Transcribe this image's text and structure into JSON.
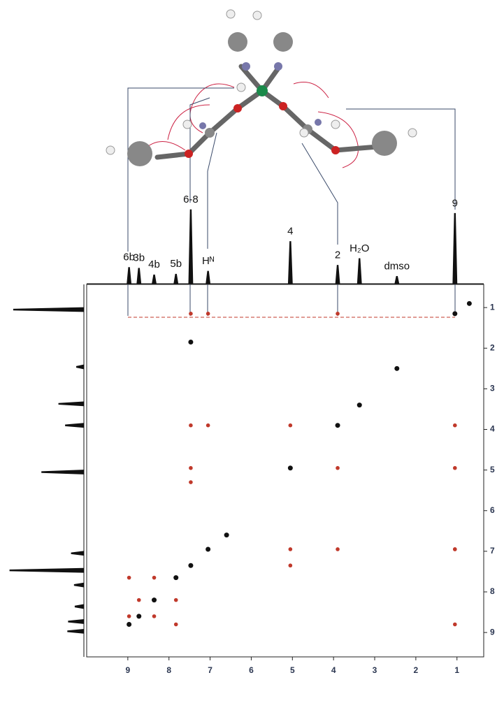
{
  "chart_data": {
    "type": "nmr2d",
    "xlim": [
      10,
      0.35
    ],
    "xticks": [
      9,
      8,
      7,
      6,
      5,
      4,
      3,
      2,
      1
    ],
    "ylim": [
      0.43,
      9.6
    ],
    "yticks": [
      1,
      2,
      3,
      4,
      5,
      6,
      7,
      8,
      9
    ],
    "peaks": {
      "x": [
        8.97,
        8.73,
        8.36,
        7.83,
        7.47,
        7.05,
        5.05,
        3.9,
        3.37,
        2.46,
        1.05
      ],
      "values": [
        22,
        21,
        12,
        13,
        100,
        17,
        57,
        25,
        34,
        10,
        95
      ],
      "labels": [
        "6b",
        "3b",
        "4b",
        "5b",
        "6-8",
        "Hᴺ",
        "4",
        "2",
        "H₂O",
        "dmso",
        "9"
      ]
    },
    "series": [
      {
        "color": "#111111",
        "x": [
          1.05,
          2.46,
          3.37,
          3.9,
          5.05,
          6.6,
          7.05,
          7.47,
          7.83,
          8.36,
          8.73,
          8.97,
          7.47,
          0.7
        ],
        "values": [
          1.15,
          2.5,
          3.4,
          3.9,
          4.95,
          6.6,
          6.95,
          7.35,
          7.65,
          8.2,
          8.6,
          8.8,
          1.85,
          0.9
        ]
      },
      {
        "color": "#c0392b",
        "x": [
          7.47,
          7.05,
          3.9,
          1.05,
          7.47,
          7.05,
          5.05,
          1.05,
          7.47,
          7.47,
          3.9,
          1.05,
          5.05,
          3.9,
          1.05,
          5.05,
          8.97,
          8.36,
          8.73,
          8.36,
          7.83,
          7.83,
          1.05,
          8.97
        ],
        "values": [
          1.15,
          1.15,
          1.15,
          3.9,
          3.9,
          3.9,
          3.9,
          4.95,
          4.95,
          5.3,
          4.95,
          6.95,
          6.95,
          6.95,
          6.95,
          7.35,
          7.65,
          7.65,
          8.2,
          8.6,
          8.2,
          8.8,
          8.8,
          8.6
        ]
      }
    ]
  }
}
